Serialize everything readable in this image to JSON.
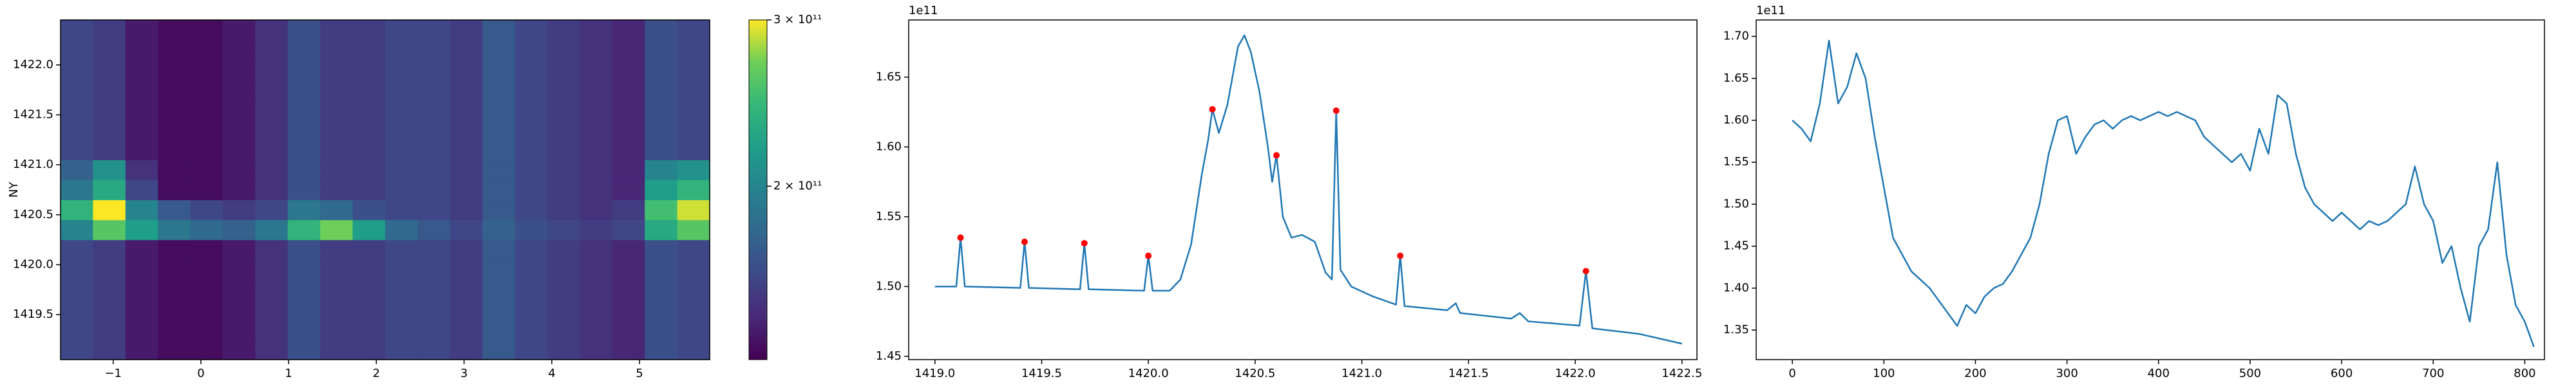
{
  "chart_data": [
    {
      "type": "heatmap",
      "ylabel": "NY",
      "colormap": "viridis",
      "xlim": [
        -1.6,
        5.8
      ],
      "ylim": [
        1419.05,
        1422.45
      ],
      "xticks": [
        {
          "value": -1,
          "label": "−1"
        },
        0,
        1,
        2,
        3,
        4,
        5
      ],
      "yticks": [
        1419.5,
        {
          "value": 1420,
          "label": "1420.0"
        },
        1420.5,
        {
          "value": 1421,
          "label": "1421.0"
        },
        1421.5,
        {
          "value": 1422,
          "label": "1422.0"
        }
      ],
      "clim": [
        131000000000.0,
        300000000000.0
      ],
      "cscale": "log",
      "cticks": [
        {
          "value": 200000000000.0,
          "label": "2 × 10¹¹"
        },
        {
          "value": 300000000000.0,
          "label": "3 × 10¹¹"
        }
      ],
      "z": [
        [
          160000000000.0,
          155000000000.0,
          140000000000.0,
          135000000000.0,
          135000000000.0,
          140000000000.0,
          150000000000.0,
          165000000000.0,
          155000000000.0,
          155000000000.0,
          160000000000.0,
          160000000000.0,
          155000000000.0,
          170000000000.0,
          160000000000.0,
          155000000000.0,
          150000000000.0,
          145000000000.0,
          165000000000.0,
          160000000000.0
        ],
        [
          160000000000.0,
          155000000000.0,
          140000000000.0,
          135000000000.0,
          135000000000.0,
          140000000000.0,
          150000000000.0,
          165000000000.0,
          155000000000.0,
          155000000000.0,
          160000000000.0,
          160000000000.0,
          155000000000.0,
          170000000000.0,
          160000000000.0,
          155000000000.0,
          150000000000.0,
          145000000000.0,
          165000000000.0,
          160000000000.0
        ],
        [
          160000000000.0,
          155000000000.0,
          140000000000.0,
          135000000000.0,
          135000000000.0,
          140000000000.0,
          150000000000.0,
          165000000000.0,
          155000000000.0,
          155000000000.0,
          160000000000.0,
          160000000000.0,
          155000000000.0,
          170000000000.0,
          160000000000.0,
          155000000000.0,
          150000000000.0,
          145000000000.0,
          165000000000.0,
          160000000000.0
        ],
        [
          160000000000.0,
          155000000000.0,
          140000000000.0,
          135000000000.0,
          135000000000.0,
          140000000000.0,
          150000000000.0,
          165000000000.0,
          155000000000.0,
          155000000000.0,
          160000000000.0,
          160000000000.0,
          155000000000.0,
          170000000000.0,
          160000000000.0,
          155000000000.0,
          150000000000.0,
          145000000000.0,
          165000000000.0,
          160000000000.0
        ],
        [
          160000000000.0,
          155000000000.0,
          140000000000.0,
          135000000000.0,
          135000000000.0,
          140000000000.0,
          150000000000.0,
          165000000000.0,
          155000000000.0,
          155000000000.0,
          160000000000.0,
          160000000000.0,
          155000000000.0,
          170000000000.0,
          160000000000.0,
          155000000000.0,
          150000000000.0,
          145000000000.0,
          165000000000.0,
          160000000000.0
        ],
        [
          160000000000.0,
          155000000000.0,
          140000000000.0,
          135000000000.0,
          135000000000.0,
          140000000000.0,
          150000000000.0,
          165000000000.0,
          155000000000.0,
          155000000000.0,
          160000000000.0,
          160000000000.0,
          155000000000.0,
          170000000000.0,
          160000000000.0,
          155000000000.0,
          150000000000.0,
          145000000000.0,
          165000000000.0,
          160000000000.0
        ],
        [
          200000000000.0,
          260000000000.0,
          220000000000.0,
          190000000000.0,
          180000000000.0,
          175000000000.0,
          190000000000.0,
          240000000000.0,
          270000000000.0,
          220000000000.0,
          180000000000.0,
          170000000000.0,
          160000000000.0,
          175000000000.0,
          165000000000.0,
          160000000000.0,
          155000000000.0,
          160000000000.0,
          230000000000.0,
          260000000000.0
        ],
        [
          240000000000.0,
          300000000000.0,
          200000000000.0,
          170000000000.0,
          160000000000.0,
          155000000000.0,
          160000000000.0,
          190000000000.0,
          180000000000.0,
          165000000000.0,
          160000000000.0,
          160000000000.0,
          155000000000.0,
          170000000000.0,
          160000000000.0,
          155000000000.0,
          150000000000.0,
          155000000000.0,
          250000000000.0,
          290000000000.0
        ],
        [
          190000000000.0,
          230000000000.0,
          160000000000.0,
          135000000000.0,
          135000000000.0,
          140000000000.0,
          150000000000.0,
          165000000000.0,
          155000000000.0,
          155000000000.0,
          160000000000.0,
          160000000000.0,
          155000000000.0,
          170000000000.0,
          160000000000.0,
          155000000000.0,
          150000000000.0,
          145000000000.0,
          220000000000.0,
          240000000000.0
        ],
        [
          175000000000.0,
          210000000000.0,
          150000000000.0,
          135000000000.0,
          135000000000.0,
          140000000000.0,
          150000000000.0,
          165000000000.0,
          155000000000.0,
          155000000000.0,
          160000000000.0,
          160000000000.0,
          155000000000.0,
          170000000000.0,
          160000000000.0,
          155000000000.0,
          150000000000.0,
          145000000000.0,
          200000000000.0,
          210000000000.0
        ],
        [
          160000000000.0,
          155000000000.0,
          140000000000.0,
          135000000000.0,
          135000000000.0,
          140000000000.0,
          150000000000.0,
          165000000000.0,
          155000000000.0,
          155000000000.0,
          160000000000.0,
          160000000000.0,
          155000000000.0,
          170000000000.0,
          160000000000.0,
          155000000000.0,
          150000000000.0,
          145000000000.0,
          165000000000.0,
          160000000000.0
        ],
        [
          160000000000.0,
          155000000000.0,
          140000000000.0,
          135000000000.0,
          135000000000.0,
          140000000000.0,
          150000000000.0,
          165000000000.0,
          155000000000.0,
          155000000000.0,
          160000000000.0,
          160000000000.0,
          155000000000.0,
          170000000000.0,
          160000000000.0,
          155000000000.0,
          150000000000.0,
          145000000000.0,
          165000000000.0,
          160000000000.0
        ],
        [
          160000000000.0,
          155000000000.0,
          140000000000.0,
          135000000000.0,
          135000000000.0,
          140000000000.0,
          150000000000.0,
          165000000000.0,
          155000000000.0,
          155000000000.0,
          160000000000.0,
          160000000000.0,
          155000000000.0,
          170000000000.0,
          160000000000.0,
          155000000000.0,
          150000000000.0,
          145000000000.0,
          165000000000.0,
          160000000000.0
        ],
        [
          160000000000.0,
          155000000000.0,
          140000000000.0,
          135000000000.0,
          135000000000.0,
          140000000000.0,
          150000000000.0,
          165000000000.0,
          155000000000.0,
          155000000000.0,
          160000000000.0,
          160000000000.0,
          155000000000.0,
          170000000000.0,
          160000000000.0,
          155000000000.0,
          150000000000.0,
          145000000000.0,
          165000000000.0,
          160000000000.0
        ],
        [
          160000000000.0,
          155000000000.0,
          140000000000.0,
          135000000000.0,
          135000000000.0,
          140000000000.0,
          150000000000.0,
          165000000000.0,
          155000000000.0,
          155000000000.0,
          160000000000.0,
          160000000000.0,
          155000000000.0,
          170000000000.0,
          160000000000.0,
          155000000000.0,
          150000000000.0,
          145000000000.0,
          165000000000.0,
          160000000000.0
        ],
        [
          160000000000.0,
          155000000000.0,
          140000000000.0,
          135000000000.0,
          135000000000.0,
          140000000000.0,
          150000000000.0,
          165000000000.0,
          155000000000.0,
          155000000000.0,
          160000000000.0,
          160000000000.0,
          155000000000.0,
          170000000000.0,
          160000000000.0,
          155000000000.0,
          150000000000.0,
          145000000000.0,
          165000000000.0,
          160000000000.0
        ],
        [
          160000000000.0,
          155000000000.0,
          140000000000.0,
          135000000000.0,
          135000000000.0,
          140000000000.0,
          150000000000.0,
          165000000000.0,
          155000000000.0,
          155000000000.0,
          160000000000.0,
          160000000000.0,
          155000000000.0,
          170000000000.0,
          160000000000.0,
          155000000000.0,
          150000000000.0,
          145000000000.0,
          165000000000.0,
          160000000000.0
        ]
      ]
    },
    {
      "type": "line",
      "y_offset_label": "1e11",
      "xlim": [
        1418.877,
        1422.57
      ],
      "ylim": [
        1.4476,
        1.691
      ],
      "xticks": [
        {
          "value": 1419,
          "label": "1419.0"
        },
        1419.5,
        {
          "value": 1420,
          "label": "1420.0"
        },
        1420.5,
        {
          "value": 1421,
          "label": "1421.0"
        },
        1421.5,
        {
          "value": 1422,
          "label": "1422.0"
        },
        1422.5
      ],
      "yticks": [
        1.45,
        {
          "value": 1.5,
          "label": "1.50"
        },
        1.55,
        {
          "value": 1.6,
          "label": "1.60"
        },
        1.65
      ],
      "series": [
        {
          "mode": "line",
          "color": "#1f77b4",
          "x": [
            1419.0,
            1419.1,
            1419.12,
            1419.14,
            1419.4,
            1419.42,
            1419.44,
            1419.68,
            1419.7,
            1419.72,
            1419.98,
            1420.0,
            1420.02,
            1420.1,
            1420.15,
            1420.2,
            1420.25,
            1420.28,
            1420.3,
            1420.33,
            1420.37,
            1420.42,
            1420.45,
            1420.48,
            1420.52,
            1420.56,
            1420.58,
            1420.6,
            1420.63,
            1420.67,
            1420.72,
            1420.78,
            1420.83,
            1420.86,
            1420.88,
            1420.9,
            1420.95,
            1421.05,
            1421.16,
            1421.18,
            1421.2,
            1421.4,
            1421.44,
            1421.46,
            1421.7,
            1421.74,
            1421.78,
            1422.02,
            1422.05,
            1422.08,
            1422.3,
            1422.5
          ],
          "values": [
            1.5,
            1.5,
            1.535,
            1.5,
            1.499,
            1.532,
            1.499,
            1.498,
            1.531,
            1.498,
            1.497,
            1.522,
            1.497,
            1.497,
            1.505,
            1.53,
            1.58,
            1.605,
            1.627,
            1.61,
            1.63,
            1.672,
            1.68,
            1.668,
            1.64,
            1.6,
            1.575,
            1.594,
            1.55,
            1.535,
            1.537,
            1.532,
            1.51,
            1.505,
            1.626,
            1.512,
            1.5,
            1.493,
            1.487,
            1.522,
            1.486,
            1.483,
            1.488,
            1.481,
            1.477,
            1.481,
            1.475,
            1.472,
            1.511,
            1.47,
            1.466,
            1.459
          ]
        },
        {
          "mode": "markers",
          "color": "#ff0000",
          "x": [
            1419.12,
            1419.42,
            1419.7,
            1420.0,
            1420.3,
            1420.6,
            1420.88,
            1421.18,
            1422.05
          ],
          "values": [
            1.535,
            1.532,
            1.531,
            1.522,
            1.627,
            1.594,
            1.626,
            1.522,
            1.511
          ]
        }
      ]
    },
    {
      "type": "line",
      "y_offset_label": "1e11",
      "xlim": [
        -39.5,
        821.5
      ],
      "ylim": [
        1.3148,
        1.7196
      ],
      "xticks": [
        0,
        100,
        200,
        300,
        400,
        500,
        600,
        700,
        800
      ],
      "yticks": [
        1.35,
        {
          "value": 1.4,
          "label": "1.40"
        },
        1.45,
        {
          "value": 1.5,
          "label": "1.50"
        },
        1.55,
        {
          "value": 1.6,
          "label": "1.60"
        },
        1.65,
        {
          "value": 1.7,
          "label": "1.70"
        }
      ],
      "series": [
        {
          "mode": "line",
          "color": "#1f77b4",
          "x": [
            0,
            10,
            20,
            30,
            40,
            50,
            60,
            70,
            80,
            90,
            100,
            110,
            120,
            130,
            140,
            150,
            160,
            170,
            180,
            190,
            200,
            210,
            220,
            230,
            240,
            250,
            260,
            270,
            280,
            290,
            300,
            310,
            320,
            330,
            340,
            350,
            360,
            370,
            380,
            390,
            400,
            410,
            420,
            430,
            440,
            450,
            460,
            470,
            480,
            490,
            500,
            510,
            520,
            530,
            540,
            550,
            560,
            570,
            580,
            590,
            600,
            610,
            620,
            630,
            640,
            650,
            660,
            670,
            680,
            690,
            700,
            710,
            720,
            730,
            740,
            750,
            760,
            770,
            780,
            790,
            800,
            810
          ],
          "values": [
            1.6,
            1.59,
            1.575,
            1.62,
            1.695,
            1.62,
            1.64,
            1.68,
            1.65,
            1.58,
            1.52,
            1.46,
            1.44,
            1.42,
            1.41,
            1.4,
            1.385,
            1.37,
            1.355,
            1.38,
            1.37,
            1.39,
            1.4,
            1.405,
            1.42,
            1.44,
            1.46,
            1.5,
            1.56,
            1.6,
            1.605,
            1.56,
            1.58,
            1.595,
            1.6,
            1.59,
            1.6,
            1.605,
            1.6,
            1.605,
            1.61,
            1.605,
            1.61,
            1.605,
            1.6,
            1.58,
            1.57,
            1.56,
            1.55,
            1.56,
            1.54,
            1.59,
            1.56,
            1.63,
            1.62,
            1.56,
            1.52,
            1.5,
            1.49,
            1.48,
            1.49,
            1.48,
            1.47,
            1.48,
            1.475,
            1.48,
            1.49,
            1.5,
            1.545,
            1.5,
            1.48,
            1.43,
            1.45,
            1.4,
            1.36,
            1.45,
            1.47,
            1.55,
            1.44,
            1.38,
            1.36,
            1.33
          ]
        }
      ]
    }
  ]
}
